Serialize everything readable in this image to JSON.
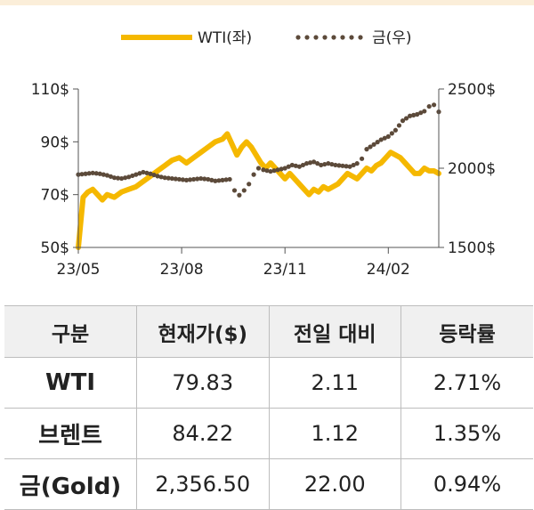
{
  "chart_data": {
    "type": "line",
    "x_ticks": [
      "23/05",
      "23/08",
      "23/11",
      "24/02"
    ],
    "y_left": {
      "ticks": [
        "50$",
        "70$",
        "90$",
        "110$"
      ],
      "range": [
        50,
        110
      ]
    },
    "y_right": {
      "ticks": [
        "1500$",
        "2000$",
        "2500$"
      ],
      "range": [
        1500,
        2500
      ]
    },
    "legend": {
      "placement": "top"
    },
    "series": [
      {
        "name": "WTI(좌)",
        "axis": "left",
        "color": "#f5b800",
        "style": "solid",
        "values": [
          [
            0,
            50
          ],
          [
            2,
            69
          ],
          [
            4,
            71
          ],
          [
            6,
            72
          ],
          [
            8,
            70
          ],
          [
            10,
            68
          ],
          [
            12,
            70
          ],
          [
            15,
            69
          ],
          [
            18,
            71
          ],
          [
            21,
            72
          ],
          [
            24,
            73
          ],
          [
            27,
            75
          ],
          [
            30,
            77
          ],
          [
            33,
            79
          ],
          [
            36,
            81
          ],
          [
            39,
            83
          ],
          [
            42,
            84
          ],
          [
            45,
            82
          ],
          [
            48,
            84
          ],
          [
            51,
            86
          ],
          [
            54,
            88
          ],
          [
            57,
            90
          ],
          [
            60,
            91
          ],
          [
            62,
            93
          ],
          [
            64,
            89
          ],
          [
            66,
            85
          ],
          [
            68,
            88
          ],
          [
            70,
            90
          ],
          [
            72,
            88
          ],
          [
            74,
            85
          ],
          [
            76,
            82
          ],
          [
            78,
            80
          ],
          [
            80,
            82
          ],
          [
            82,
            80
          ],
          [
            84,
            78
          ],
          [
            86,
            76
          ],
          [
            88,
            78
          ],
          [
            90,
            76
          ],
          [
            92,
            74
          ],
          [
            94,
            72
          ],
          [
            96,
            70
          ],
          [
            98,
            72
          ],
          [
            100,
            71
          ],
          [
            102,
            73
          ],
          [
            104,
            72
          ],
          [
            106,
            73
          ],
          [
            108,
            74
          ],
          [
            110,
            76
          ],
          [
            112,
            78
          ],
          [
            114,
            77
          ],
          [
            116,
            76
          ],
          [
            118,
            78
          ],
          [
            120,
            80
          ],
          [
            122,
            79
          ],
          [
            124,
            81
          ],
          [
            126,
            82
          ],
          [
            128,
            84
          ],
          [
            130,
            86
          ],
          [
            132,
            85
          ],
          [
            134,
            84
          ],
          [
            136,
            82
          ],
          [
            138,
            80
          ],
          [
            140,
            78
          ],
          [
            142,
            78
          ],
          [
            144,
            80
          ],
          [
            146,
            79
          ],
          [
            148,
            79
          ],
          [
            150,
            78
          ]
        ]
      },
      {
        "name": "금(우)",
        "axis": "right",
        "color": "#5c4a3a",
        "style": "dotted",
        "values": [
          [
            0,
            1960
          ],
          [
            3,
            1965
          ],
          [
            6,
            1970
          ],
          [
            9,
            1965
          ],
          [
            12,
            1955
          ],
          [
            15,
            1940
          ],
          [
            18,
            1935
          ],
          [
            21,
            1945
          ],
          [
            24,
            1960
          ],
          [
            27,
            1975
          ],
          [
            30,
            1965
          ],
          [
            33,
            1950
          ],
          [
            36,
            1940
          ],
          [
            39,
            1935
          ],
          [
            42,
            1930
          ],
          [
            45,
            1925
          ],
          [
            48,
            1930
          ],
          [
            51,
            1935
          ],
          [
            54,
            1930
          ],
          [
            57,
            1920
          ],
          [
            60,
            1925
          ],
          [
            63,
            1930
          ],
          [
            65,
            1860
          ],
          [
            67,
            1830
          ],
          [
            69,
            1860
          ],
          [
            71,
            1900
          ],
          [
            73,
            1960
          ],
          [
            75,
            2000
          ],
          [
            77,
            1990
          ],
          [
            80,
            1980
          ],
          [
            83,
            1990
          ],
          [
            86,
            2000
          ],
          [
            89,
            2020
          ],
          [
            92,
            2010
          ],
          [
            95,
            2030
          ],
          [
            98,
            2040
          ],
          [
            101,
            2020
          ],
          [
            104,
            2030
          ],
          [
            107,
            2020
          ],
          [
            110,
            2015
          ],
          [
            113,
            2010
          ],
          [
            116,
            2030
          ],
          [
            118,
            2060
          ],
          [
            120,
            2120
          ],
          [
            123,
            2150
          ],
          [
            126,
            2180
          ],
          [
            129,
            2200
          ],
          [
            132,
            2240
          ],
          [
            135,
            2300
          ],
          [
            138,
            2330
          ],
          [
            141,
            2340
          ],
          [
            144,
            2360
          ],
          [
            146,
            2390
          ],
          [
            148,
            2400
          ],
          [
            150,
            2356
          ]
        ]
      }
    ]
  },
  "table": {
    "headers": [
      "구분",
      "현재가($)",
      "전일 대비",
      "등락률"
    ],
    "rows": [
      [
        "WTI",
        "79.83",
        "2.11",
        "2.71%"
      ],
      [
        "브렌트",
        "84.22",
        "1.12",
        "1.35%"
      ],
      [
        "금(Gold)",
        "2,356.50",
        "22.00",
        "0.94%"
      ]
    ]
  }
}
